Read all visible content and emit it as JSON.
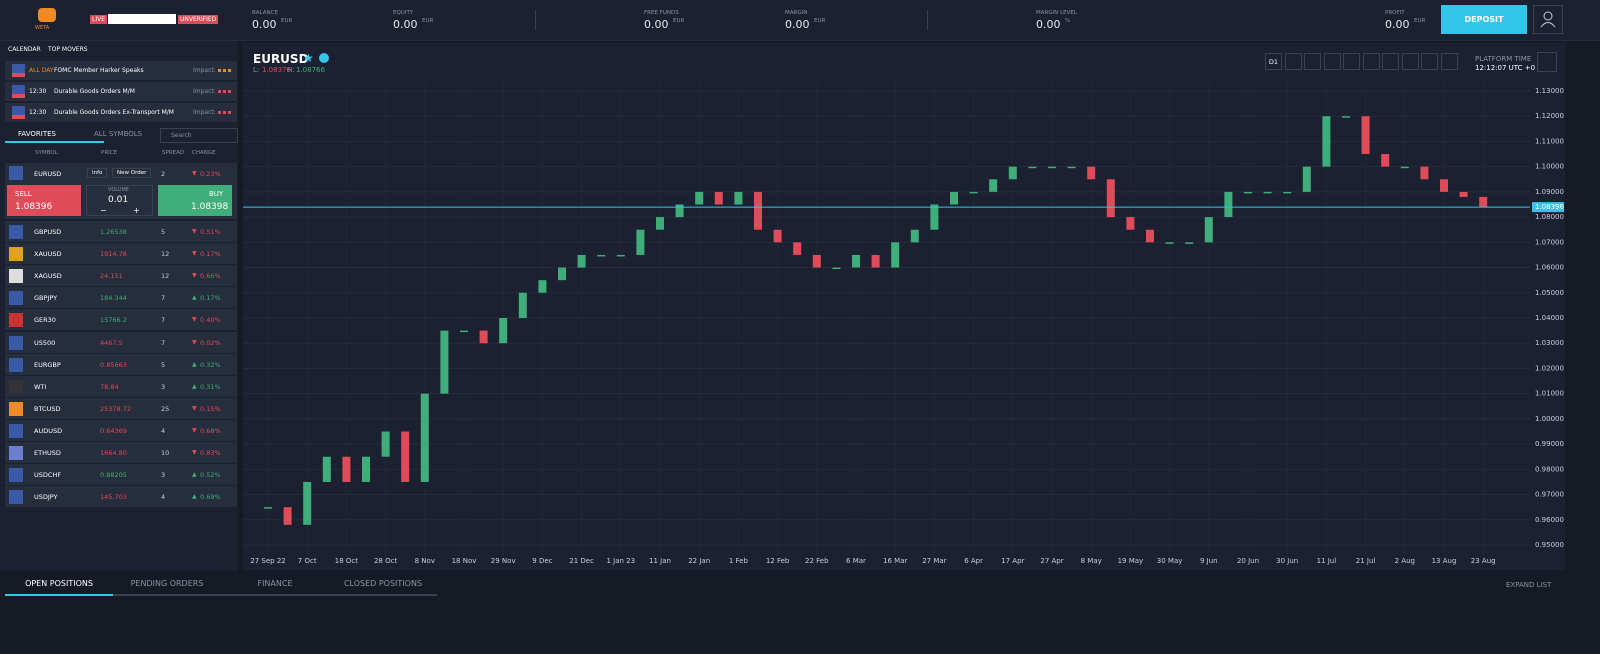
{
  "topbar": {
    "logo": "WETA",
    "live": "LIVE",
    "unverified": "UNVERIFIED",
    "stats": [
      {
        "label": "BALANCE",
        "value": "0.00",
        "unit": "EUR"
      },
      {
        "label": "EQUITY",
        "value": "0.00",
        "unit": "EUR"
      },
      {
        "label": "FREE FUNDS",
        "value": "0.00",
        "unit": "EUR"
      },
      {
        "label": "MARGIN",
        "value": "0.00",
        "unit": "EUR"
      },
      {
        "label": "MARGIN LEVEL",
        "value": "0.00",
        "unit": "%"
      },
      {
        "label": "PROFIT",
        "value": "0.00",
        "unit": "EUR"
      }
    ],
    "deposit": "DEPOSIT"
  },
  "calendar": {
    "tabs": [
      "CALENDAR",
      "TOP MOVERS"
    ],
    "impact_label": "Impact:",
    "events": [
      {
        "time": "ALL DAY",
        "title": "FOMC Member Harker Speaks"
      },
      {
        "time": "12:30",
        "title": "Durable Goods Orders M/M"
      },
      {
        "time": "12:30",
        "title": "Durable Goods Orders Ex-Transport M/M"
      }
    ]
  },
  "symbols": {
    "tabs": [
      "FAVORITES",
      "ALL SYMBOLS"
    ],
    "search": "Search",
    "headers": [
      "SYMBOL",
      "PRICE",
      "SPREAD",
      "CHANGE"
    ],
    "selected": {
      "symbol": "EURUSD",
      "info": "Info",
      "new_order": "New Order",
      "spread": "2",
      "change": "0.23%",
      "sell_label": "SELL",
      "sell": "1.08396",
      "volume_label": "VOLUME",
      "volume": "0.01",
      "minus": "−",
      "plus": "+",
      "buy_label": "BUY",
      "buy": "1.08398"
    },
    "rows": [
      {
        "symbol": "GBPUSD",
        "price": "1.26538",
        "price_dir": "up",
        "spread": "5",
        "change": "0.51%",
        "change_dir": "down"
      },
      {
        "symbol": "XAUUSD",
        "price": "1914.78",
        "price_dir": "down",
        "spread": "12",
        "change": "0.17%",
        "change_dir": "down"
      },
      {
        "symbol": "XAGUSD",
        "price": "24.151",
        "price_dir": "down",
        "spread": "12",
        "change": "0.66%",
        "change_dir": "down"
      },
      {
        "symbol": "GBPJPY",
        "price": "184.344",
        "price_dir": "up",
        "spread": "7",
        "change": "0.17%",
        "change_dir": "up"
      },
      {
        "symbol": "GER30",
        "price": "15766.2",
        "price_dir": "up",
        "spread": "7",
        "change": "0.40%",
        "change_dir": "down"
      },
      {
        "symbol": "US500",
        "price": "4467.5",
        "price_dir": "down",
        "spread": "7",
        "change": "0.02%",
        "change_dir": "down"
      },
      {
        "symbol": "EURGBP",
        "price": "0.85663",
        "price_dir": "down",
        "spread": "5",
        "change": "0.32%",
        "change_dir": "up"
      },
      {
        "symbol": "WTI",
        "price": "78.84",
        "price_dir": "down",
        "spread": "3",
        "change": "0.31%",
        "change_dir": "up"
      },
      {
        "symbol": "BTCUSD",
        "price": "25378.72",
        "price_dir": "down",
        "spread": "25",
        "change": "0.15%",
        "change_dir": "down"
      },
      {
        "symbol": "AUDUSD",
        "price": "0.64369",
        "price_dir": "down",
        "spread": "4",
        "change": "0.68%",
        "change_dir": "down"
      },
      {
        "symbol": "ETHUSD",
        "price": "1664.80",
        "price_dir": "down",
        "spread": "10",
        "change": "0.83%",
        "change_dir": "down"
      },
      {
        "symbol": "USDCHF",
        "price": "0.88205",
        "price_dir": "up",
        "spread": "3",
        "change": "0.52%",
        "change_dir": "up"
      },
      {
        "symbol": "USDJPY",
        "price": "145.703",
        "price_dir": "down",
        "spread": "4",
        "change": "0.69%",
        "change_dir": "up"
      }
    ]
  },
  "chart_header": {
    "symbol": "EURUSD",
    "low_label": "L:",
    "low": "1.08376",
    "high_label": "H:",
    "high": "1.08766",
    "timeframe": "D1",
    "platform_time_label": "PLATFORM TIME",
    "platform_time": "12:12:07 UTC +0"
  },
  "chart_data": {
    "type": "candlestick",
    "up_color": "#3fae7a",
    "down_color": "#e04b5a",
    "values": [
      0.965,
      0.958,
      0.975,
      0.985,
      0.975,
      0.985,
      0.995,
      0.975,
      1.01,
      1.035,
      1.035,
      1.03,
      1.04,
      1.05,
      1.055,
      1.06,
      1.065,
      1.065,
      1.065,
      1.075,
      1.08,
      1.085,
      1.09,
      1.085,
      1.09,
      1.075,
      1.07,
      1.065,
      1.06,
      1.06,
      1.065,
      1.06,
      1.07,
      1.075,
      1.085,
      1.09,
      1.09,
      1.095,
      1.1,
      1.1,
      1.1,
      1.1,
      1.095,
      1.08,
      1.075,
      1.07,
      1.07,
      1.07,
      1.08,
      1.09,
      1.09,
      1.09,
      1.09,
      1.1,
      1.12,
      1.12,
      1.105,
      1.1,
      1.1,
      1.095,
      1.09,
      1.088,
      1.0839
    ],
    "x_labels": [
      "27 Sep 22",
      "7 Oct",
      "18 Oct",
      "28 Oct",
      "8 Nov",
      "18 Nov",
      "29 Nov",
      "9 Dec",
      "21 Dec",
      "1 Jan 23",
      "11 Jan",
      "22 Jan",
      "1 Feb",
      "12 Feb",
      "22 Feb",
      "6 Mar",
      "16 Mar",
      "27 Mar",
      "6 Apr",
      "17 Apr",
      "27 Apr",
      "8 May",
      "19 May",
      "30 May",
      "9 Jun",
      "20 Jun",
      "30 Jun",
      "11 Jul",
      "21 Jul",
      "2 Aug",
      "13 Aug",
      "23 Aug"
    ],
    "ylim": [
      0.95,
      1.13
    ],
    "yticks": [
      {
        "value": 0.95,
        "label": "0.95000"
      },
      {
        "value": 0.96,
        "label": "0.96000"
      },
      {
        "value": 0.97,
        "label": "0.97000"
      },
      {
        "value": 0.98,
        "label": "0.98000"
      },
      {
        "value": 0.99,
        "label": "0.99000"
      },
      {
        "value": 1.0,
        "label": "1.00000"
      },
      {
        "value": 1.01,
        "label": "1.01000"
      },
      {
        "value": 1.02,
        "label": "1.02000"
      },
      {
        "value": 1.03,
        "label": "1.03000"
      },
      {
        "value": 1.04,
        "label": "1.04000"
      },
      {
        "value": 1.05,
        "label": "1.05000"
      },
      {
        "value": 1.06,
        "label": "1.06000"
      },
      {
        "value": 1.07,
        "label": "1.07000"
      },
      {
        "value": 1.08,
        "label": "1.08000"
      },
      {
        "value": 1.09,
        "label": "1.09000"
      },
      {
        "value": 1.1,
        "label": "1.10000"
      },
      {
        "value": 1.11,
        "label": "1.11000"
      },
      {
        "value": 1.12,
        "label": "1.12000"
      },
      {
        "value": 1.13,
        "label": "1.13000"
      }
    ],
    "last_price": {
      "value": 1.08396,
      "label": "1.08396"
    },
    "grid": true
  },
  "bottom": {
    "tabs": [
      "OPEN POSITIONS",
      "PENDING ORDERS",
      "FINANCE",
      "CLOSED POSITIONS"
    ],
    "expand": "EXPAND LIST"
  }
}
